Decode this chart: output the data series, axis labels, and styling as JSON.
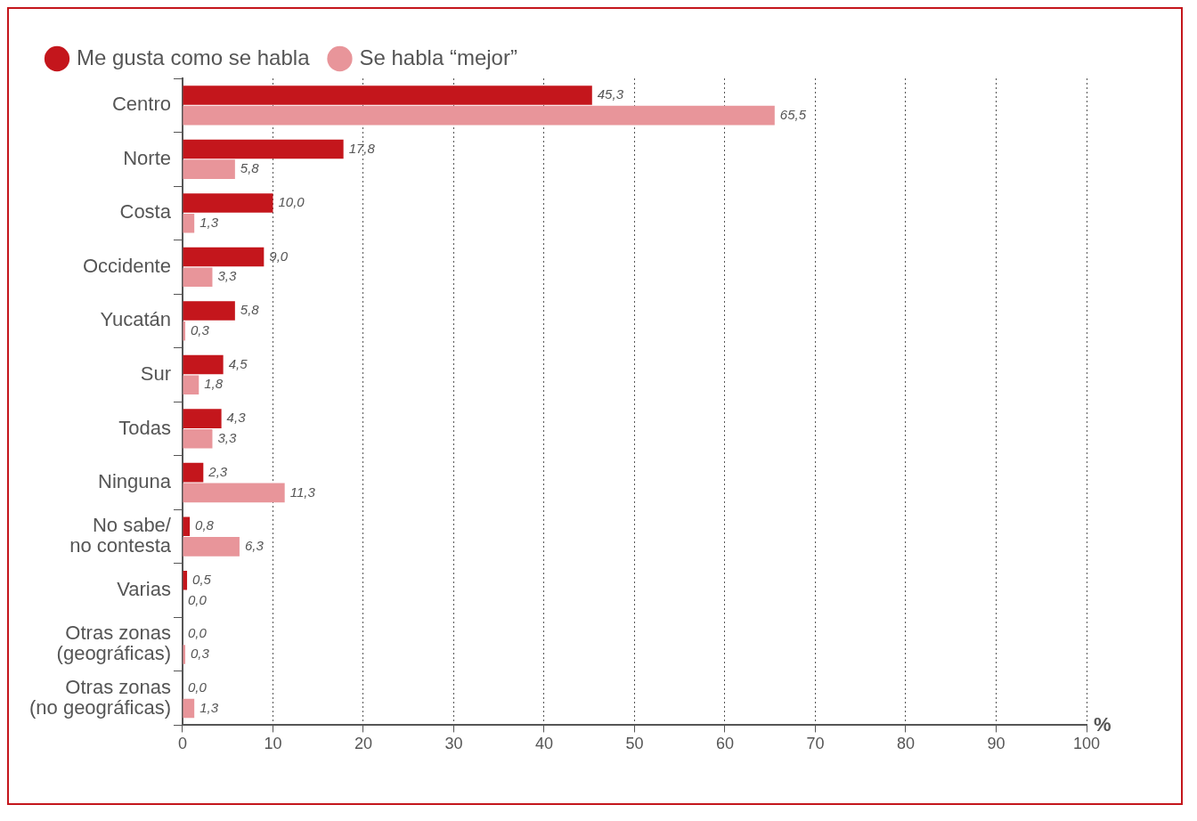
{
  "chart_data": {
    "type": "bar",
    "orientation": "horizontal",
    "xlabel": "%",
    "categories": [
      "Centro",
      "Norte",
      "Costa",
      "Occidente",
      "Yucatán",
      "Sur",
      "Todas",
      "Ninguna",
      "No sabe/\nno contesta",
      "Varias",
      "Otras zonas\n(geográficas)",
      "Otras zonas\n(no geográficas)"
    ],
    "series": [
      {
        "name": "Me gusta como se habla",
        "color": "#c4161c",
        "values": [
          45.3,
          17.8,
          10.0,
          9.0,
          5.8,
          4.5,
          4.3,
          2.3,
          0.8,
          0.5,
          0.0,
          0.0
        ],
        "value_labels": [
          "45,3",
          "17,8",
          "10,0",
          "9,0",
          "5,8",
          "4,5",
          "4,3",
          "2,3",
          "0,8",
          "0,5",
          "0,0",
          "0,0"
        ]
      },
      {
        "name": "Se habla “mejor”",
        "color": "#e8959a",
        "values": [
          65.5,
          5.8,
          1.3,
          3.3,
          0.3,
          1.8,
          3.3,
          11.3,
          6.3,
          0.0,
          0.3,
          1.3
        ],
        "value_labels": [
          "65,5",
          "5,8",
          "1,3",
          "3,3",
          "0,3",
          "1,8",
          "3,3",
          "11,3",
          "6,3",
          "0,0",
          "0,3",
          "1,3"
        ]
      }
    ],
    "xlim": [
      0,
      100
    ],
    "xticks": [
      0,
      10,
      20,
      30,
      40,
      50,
      60,
      70,
      80,
      90,
      100
    ],
    "grid": "x",
    "legend": "top left"
  }
}
